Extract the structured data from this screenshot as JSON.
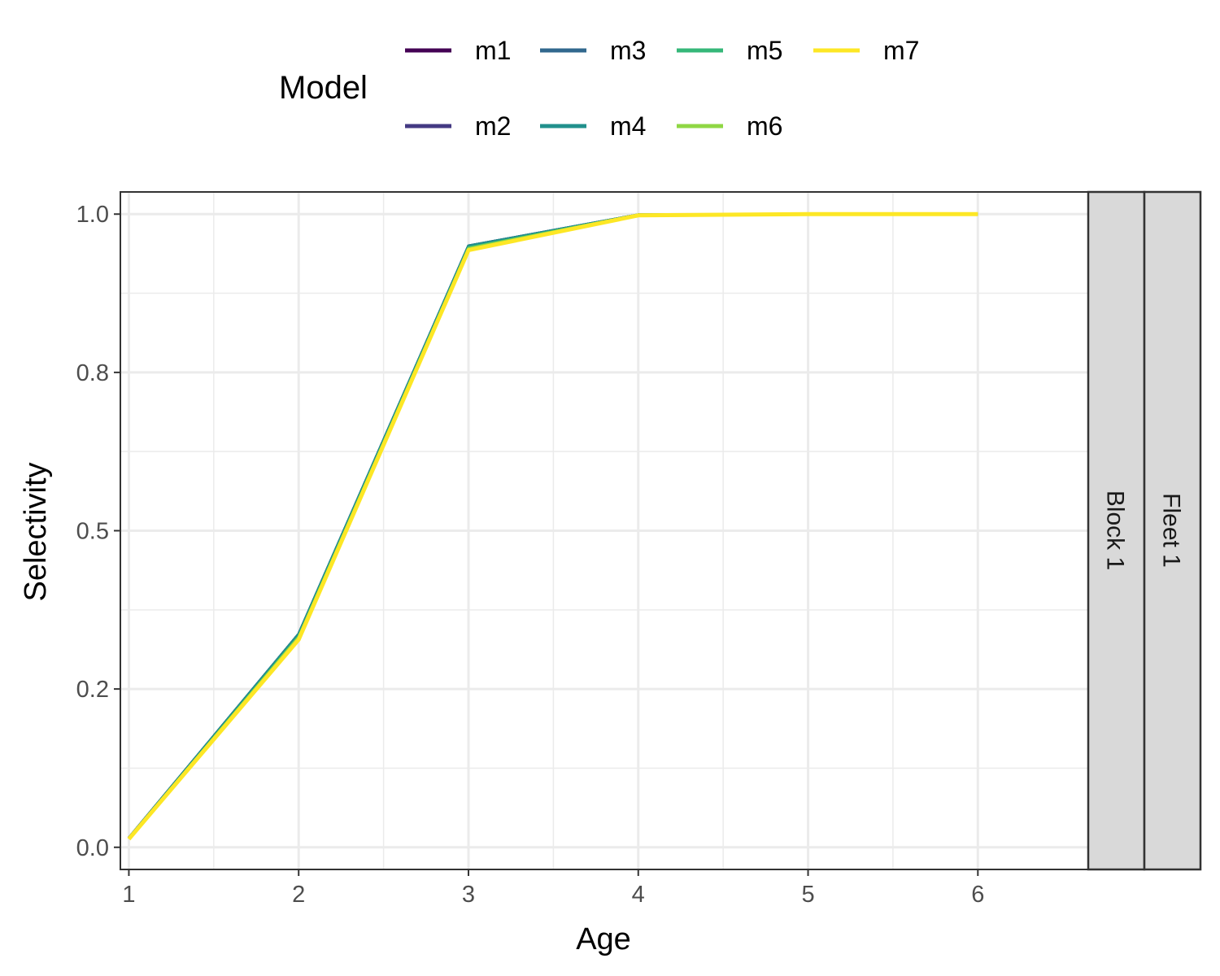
{
  "chart_data": {
    "type": "line",
    "xlabel": "Age",
    "ylabel": "Selectivity",
    "xlim": [
      0.95,
      6.65
    ],
    "ylim": [
      -0.035,
      1.035
    ],
    "x_ticks": [
      1,
      2,
      3,
      4,
      5,
      6
    ],
    "x_tick_labels": [
      "1",
      "2",
      "3",
      "4",
      "5",
      "6"
    ],
    "y_ticks": [
      0.0,
      0.25,
      0.5,
      0.75,
      1.0
    ],
    "y_tick_labels": [
      "0.0",
      "0.2",
      "0.5",
      "0.8",
      "1.0"
    ],
    "grid": true,
    "legend": {
      "title": "Model",
      "placement": "top",
      "rows": 2
    },
    "facet_strips": [
      "Block 1",
      "Fleet 1"
    ],
    "x": [
      1,
      2,
      3,
      4,
      5,
      6
    ],
    "series": [
      {
        "name": "m1",
        "color": "#440154",
        "values": [
          0.015,
          0.337,
          0.95,
          0.999,
          1.0,
          1.0
        ]
      },
      {
        "name": "m2",
        "color": "#443A83",
        "values": [
          0.015,
          0.337,
          0.95,
          0.999,
          1.0,
          1.0
        ]
      },
      {
        "name": "m3",
        "color": "#31688E",
        "values": [
          0.015,
          0.337,
          0.95,
          0.999,
          1.0,
          1.0
        ]
      },
      {
        "name": "m4",
        "color": "#21908C",
        "values": [
          0.015,
          0.337,
          0.95,
          0.999,
          1.0,
          1.0
        ]
      },
      {
        "name": "m5",
        "color": "#35B779",
        "values": [
          0.014,
          0.333,
          0.947,
          0.999,
          1.0,
          1.0
        ]
      },
      {
        "name": "m6",
        "color": "#8FD744",
        "values": [
          0.014,
          0.332,
          0.946,
          0.999,
          1.0,
          1.0
        ]
      },
      {
        "name": "m7",
        "color": "#FDE725",
        "values": [
          0.013,
          0.328,
          0.943,
          0.998,
          1.0,
          1.0
        ]
      }
    ]
  }
}
